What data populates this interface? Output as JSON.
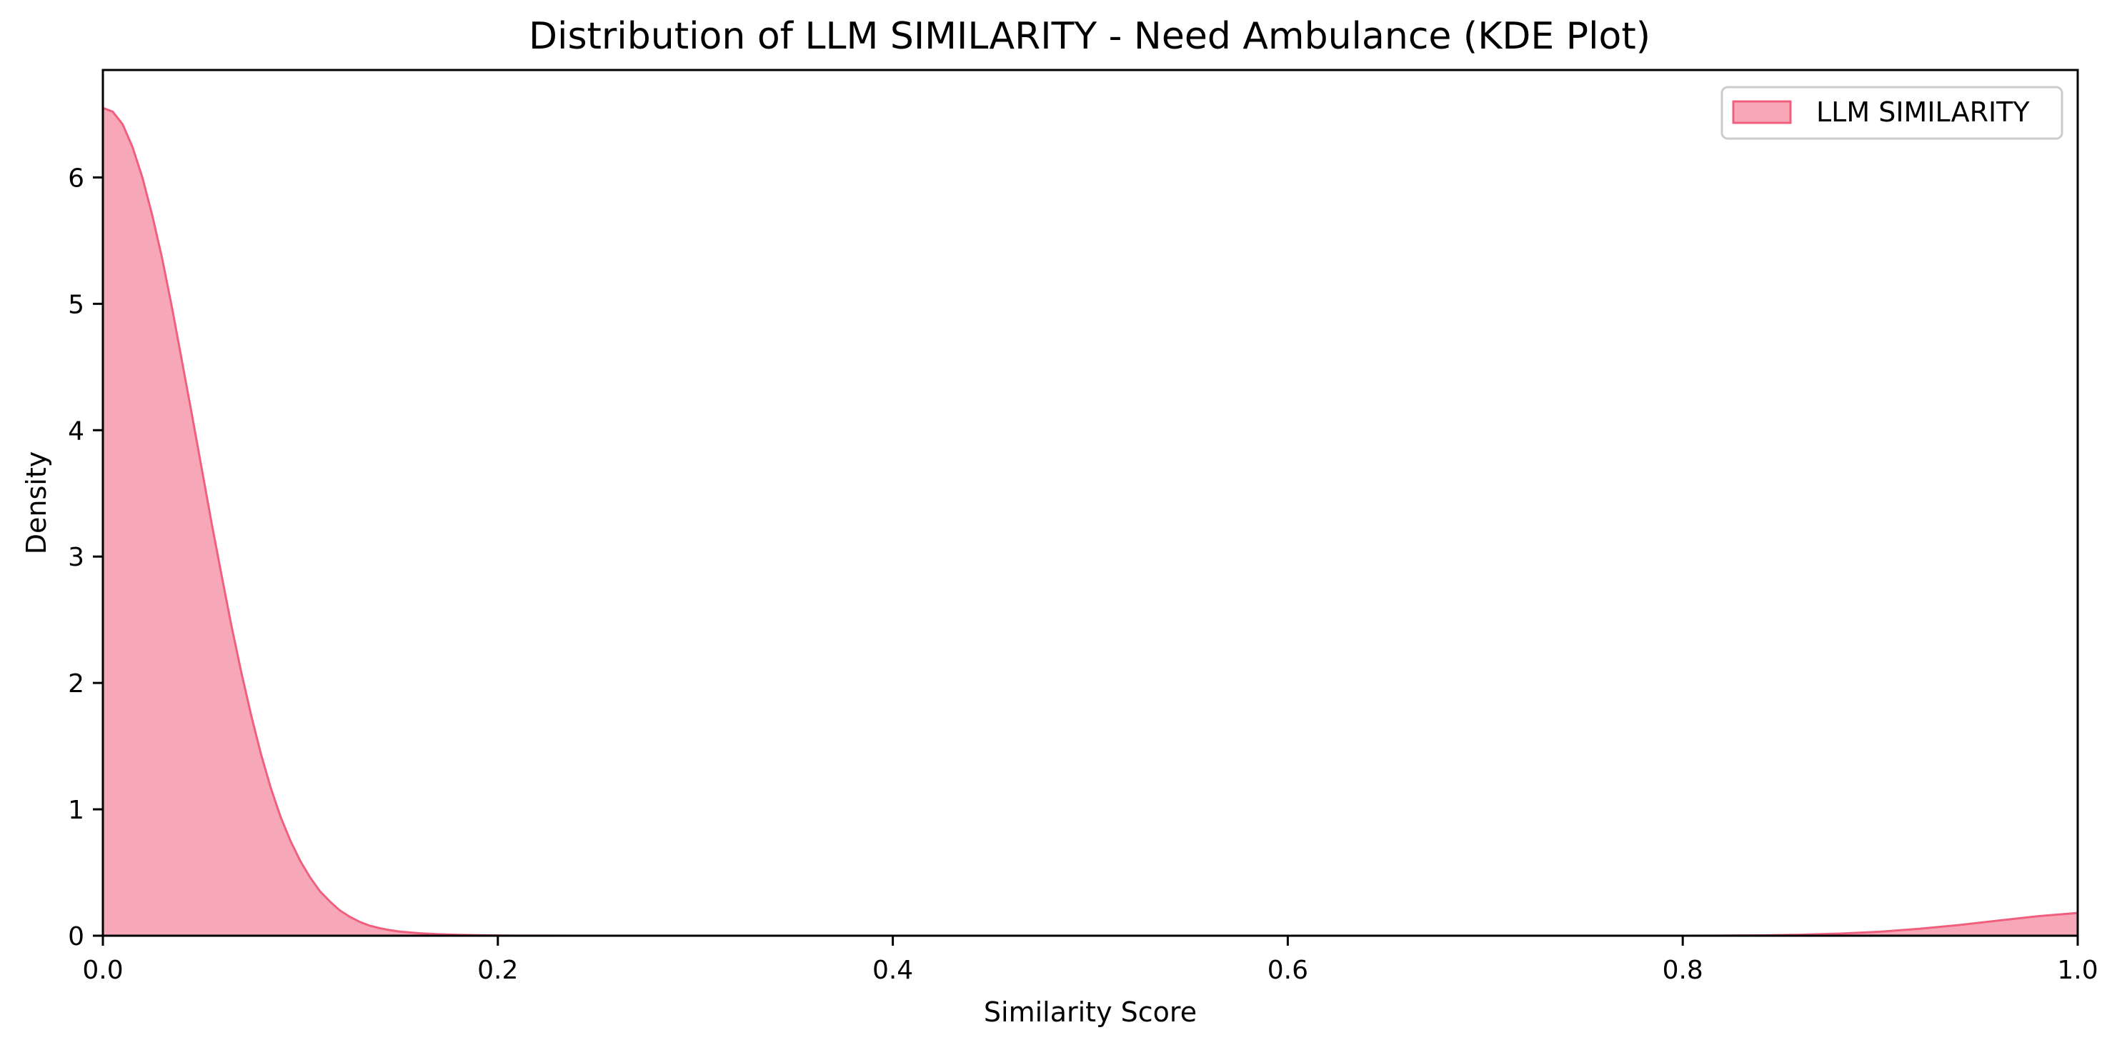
{
  "chart_data": {
    "type": "area",
    "title": "Distribution of LLM SIMILARITY - Need Ambulance (KDE Plot)",
    "xlabel": "Similarity Score",
    "ylabel": "Density",
    "xlim": [
      0.0,
      1.0
    ],
    "ylim": [
      0,
      6.85
    ],
    "xticks": [
      0.0,
      0.2,
      0.4,
      0.6,
      0.8,
      1.0
    ],
    "xtick_labels": [
      "0.0",
      "0.2",
      "0.4",
      "0.6",
      "0.8",
      "1.0"
    ],
    "yticks": [
      0,
      1,
      2,
      3,
      4,
      5,
      6
    ],
    "ytick_labels": [
      "0",
      "1",
      "2",
      "3",
      "4",
      "5",
      "6"
    ],
    "grid": false,
    "legend_position": "top-right",
    "series": [
      {
        "name": "LLM SIMILARITY",
        "color": "#f7a8b8",
        "edge_color": "#f0607e",
        "x": [
          0.0,
          0.005,
          0.01,
          0.015,
          0.02,
          0.025,
          0.03,
          0.035,
          0.04,
          0.045,
          0.05,
          0.055,
          0.06,
          0.065,
          0.07,
          0.075,
          0.08,
          0.085,
          0.09,
          0.095,
          0.1,
          0.105,
          0.11,
          0.115,
          0.12,
          0.125,
          0.13,
          0.135,
          0.14,
          0.145,
          0.15,
          0.16,
          0.17,
          0.18,
          0.19,
          0.2,
          0.21,
          0.22,
          0.24,
          0.26,
          0.3,
          0.4,
          0.5,
          0.6,
          0.7,
          0.8,
          0.82,
          0.84,
          0.86,
          0.88,
          0.9,
          0.92,
          0.94,
          0.96,
          0.98,
          1.0
        ],
        "y": [
          6.55,
          6.52,
          6.42,
          6.24,
          6.0,
          5.7,
          5.36,
          4.97,
          4.55,
          4.13,
          3.7,
          3.27,
          2.86,
          2.46,
          2.09,
          1.75,
          1.44,
          1.17,
          0.94,
          0.75,
          0.59,
          0.46,
          0.35,
          0.27,
          0.2,
          0.15,
          0.11,
          0.08,
          0.06,
          0.045,
          0.033,
          0.02,
          0.012,
          0.007,
          0.004,
          0.002,
          0.001,
          0.0005,
          0.0001,
          0.0,
          0.0,
          0.0,
          0.0,
          0.0,
          0.0,
          0.0,
          0.001,
          0.003,
          0.008,
          0.017,
          0.032,
          0.055,
          0.085,
          0.12,
          0.155,
          0.18
        ]
      }
    ]
  }
}
